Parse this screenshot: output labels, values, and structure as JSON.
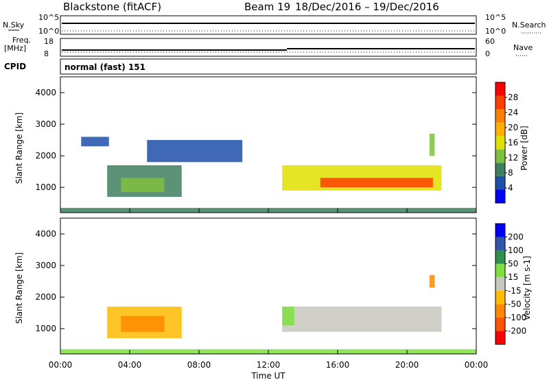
{
  "header": {
    "station": "Blackstone (fitACF)",
    "beam": "Beam 19",
    "dates": "18/Dec/2016 – 19/Dec/2016",
    "cpid": "normal (fast) 151"
  },
  "summary_panels": {
    "nsky_label": "N.Sky",
    "nsearch_label": "N.Search",
    "noise_ticks_left": [
      "10^5",
      "10^0"
    ],
    "noise_ticks_right": [
      "10^5",
      "10^0"
    ],
    "freq_label": "Freq.",
    "freq_unit": "[MHz]",
    "freq_ticks": [
      "18",
      "8"
    ],
    "nave_label": "Nave",
    "nave_ticks": [
      "60",
      "0"
    ],
    "cpid_label": "CPID"
  },
  "colors": {
    "power_scale": [
      "#0000ff",
      "#1f4fa8",
      "#3f7f5f",
      "#7fbf3f",
      "#e0e000",
      "#ffaf00",
      "#ff7f00",
      "#ff3f00",
      "#ff0000"
    ],
    "velocity_scale": [
      "#ff0000",
      "#ff5500",
      "#ff8800",
      "#ffbb00",
      "#c8c8c0",
      "#7fdf3f",
      "#2f8f4f",
      "#3355aa",
      "#0000ff"
    ],
    "ground_scatter": "#c8c8c0"
  },
  "chart_data": [
    {
      "type": "heatmap",
      "panel": "power",
      "xlabel": "Time UT",
      "ylabel": "Slant Range [km]",
      "xlim_hours": [
        0,
        24
      ],
      "x_tick_labels": [
        "00:00",
        "04:00",
        "08:00",
        "12:00",
        "16:00",
        "20:00",
        "00:00"
      ],
      "ylim": [
        200,
        4500
      ],
      "y_ticks": [
        1000,
        2000,
        3000,
        4000
      ],
      "colorbar_label": "Power [dB]",
      "colorbar_ticks": [
        "4",
        "8",
        "12",
        "16",
        "20",
        "24",
        "28"
      ],
      "colorbar_range": [
        0,
        30
      ],
      "regions": [
        {
          "t_start": 0,
          "t_end": 24,
          "r_start": 200,
          "r_end": 350,
          "value": 8
        },
        {
          "t_start": 2.7,
          "t_end": 7.0,
          "r_start": 700,
          "r_end": 1700,
          "value": 8
        },
        {
          "t_start": 3.5,
          "t_end": 6.0,
          "r_start": 850,
          "r_end": 1300,
          "value": 12
        },
        {
          "t_start": 1.2,
          "t_end": 2.8,
          "r_start": 2300,
          "r_end": 2600,
          "value": 6
        },
        {
          "t_start": 5.0,
          "t_end": 10.5,
          "r_start": 1800,
          "r_end": 2500,
          "value": 6
        },
        {
          "t_start": 12.8,
          "t_end": 22.0,
          "r_start": 900,
          "r_end": 1700,
          "value": 14
        },
        {
          "t_start": 15.0,
          "t_end": 21.5,
          "r_start": 1000,
          "r_end": 1300,
          "value": 24
        },
        {
          "t_start": 21.3,
          "t_end": 21.6,
          "r_start": 2000,
          "r_end": 2700,
          "value": 10
        }
      ]
    },
    {
      "type": "heatmap",
      "panel": "velocity",
      "xlabel": "Time UT",
      "ylabel": "Slant Range [km]",
      "xlim_hours": [
        0,
        24
      ],
      "x_tick_labels": [
        "00:00",
        "04:00",
        "08:00",
        "12:00",
        "16:00",
        "20:00",
        "00:00"
      ],
      "ylim": [
        200,
        4500
      ],
      "y_ticks": [
        1000,
        2000,
        3000,
        4000
      ],
      "colorbar_label": "Velocity [m s-1]",
      "colorbar_ticks": [
        "-200",
        "-100",
        "-50",
        "-15",
        "15",
        "50",
        "100",
        "200"
      ],
      "colorbar_range": [
        -250,
        250
      ],
      "regions": [
        {
          "t_start": 0,
          "t_end": 24,
          "r_start": 200,
          "r_end": 350,
          "value": 40
        },
        {
          "t_start": 2.7,
          "t_end": 7.0,
          "r_start": 700,
          "r_end": 1700,
          "value": -80
        },
        {
          "t_start": 3.5,
          "t_end": 6.0,
          "r_start": 900,
          "r_end": 1400,
          "value": -120
        },
        {
          "t_start": 12.8,
          "t_end": 22.0,
          "r_start": 900,
          "r_end": 1700,
          "value": 0
        },
        {
          "t_start": 12.8,
          "t_end": 13.5,
          "r_start": 1100,
          "r_end": 1700,
          "value": 40
        },
        {
          "t_start": 21.3,
          "t_end": 21.6,
          "r_start": 2300,
          "r_end": 2700,
          "value": -90
        }
      ]
    }
  ]
}
